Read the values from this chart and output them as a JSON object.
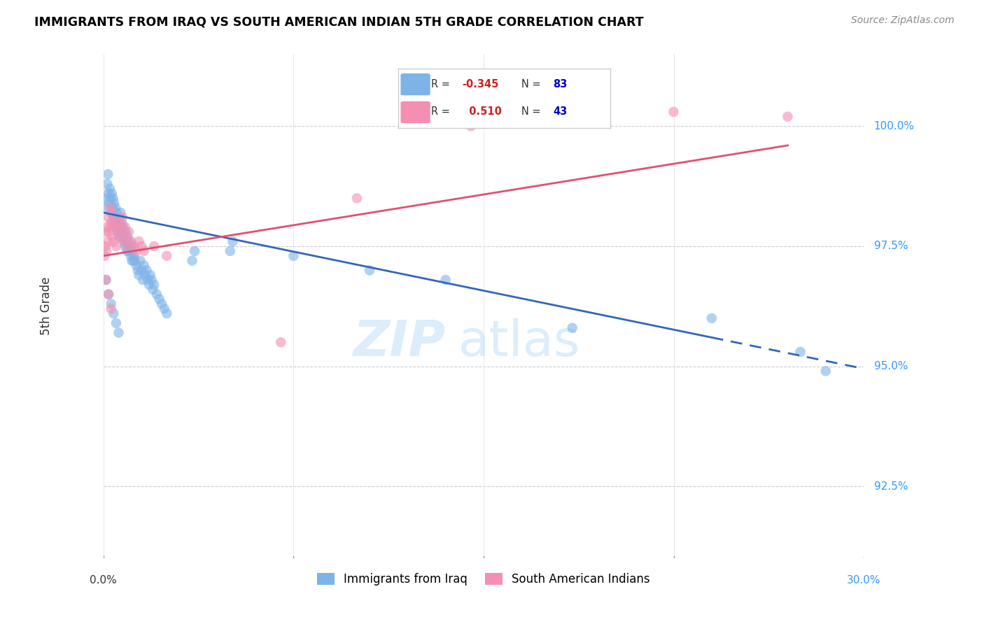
{
  "title": "IMMIGRANTS FROM IRAQ VS SOUTH AMERICAN INDIAN 5TH GRADE CORRELATION CHART",
  "source": "Source: ZipAtlas.com",
  "ylabel": "5th Grade",
  "xmin": 0.0,
  "xmax": 30.0,
  "ymin": 91.0,
  "ymax": 101.5,
  "blue_R": -0.345,
  "blue_N": 83,
  "pink_R": 0.51,
  "pink_N": 43,
  "blue_color": "#7EB3E8",
  "pink_color": "#F48FB1",
  "blue_line_color": "#3366BB",
  "pink_line_color": "#E05070",
  "legend_label_blue": "Immigrants from Iraq",
  "legend_label_pink": "South American Indians",
  "watermark_zip": "ZIP",
  "watermark_atlas": "atlas",
  "blue_line_x0": 0.0,
  "blue_line_y0": 98.2,
  "blue_line_x1": 30.0,
  "blue_line_y1": 94.95,
  "blue_solid_end": 24.0,
  "pink_line_x0": 0.0,
  "pink_line_y0": 97.3,
  "pink_line_x1": 27.0,
  "pink_line_y1": 99.6,
  "ytick_vals": [
    92.5,
    95.0,
    97.5,
    100.0
  ],
  "ytick_labels": [
    "92.5%",
    "95.0%",
    "97.5%",
    "100.0%"
  ],
  "blue_scatter_x": [
    0.08,
    0.12,
    0.15,
    0.18,
    0.2,
    0.22,
    0.25,
    0.28,
    0.3,
    0.33,
    0.35,
    0.38,
    0.4,
    0.42,
    0.45,
    0.48,
    0.5,
    0.52,
    0.55,
    0.58,
    0.6,
    0.62,
    0.65,
    0.68,
    0.7,
    0.72,
    0.75,
    0.78,
    0.8,
    0.82,
    0.85,
    0.88,
    0.9,
    0.92,
    0.95,
    0.98,
    1.0,
    1.02,
    1.05,
    1.08,
    1.1,
    1.12,
    1.15,
    1.18,
    1.2,
    1.25,
    1.3,
    1.35,
    1.4,
    1.45,
    1.5,
    1.55,
    1.6,
    1.65,
    1.7,
    1.75,
    1.8,
    1.85,
    1.9,
    1.95,
    2.0,
    2.1,
    2.2,
    2.3,
    2.4,
    2.5,
    3.5,
    3.6,
    5.0,
    5.1,
    7.5,
    10.5,
    13.5,
    18.5,
    24.0,
    27.5,
    28.5,
    0.1,
    0.2,
    0.3,
    0.4,
    0.5,
    0.6
  ],
  "blue_scatter_y": [
    98.5,
    98.3,
    98.8,
    99.0,
    98.6,
    98.4,
    98.7,
    98.5,
    98.2,
    98.6,
    98.3,
    98.5,
    98.1,
    98.4,
    98.0,
    98.3,
    97.9,
    98.2,
    98.0,
    97.8,
    98.1,
    97.7,
    97.9,
    98.2,
    97.8,
    98.0,
    97.7,
    97.9,
    97.8,
    97.6,
    97.5,
    97.8,
    97.6,
    97.4,
    97.7,
    97.5,
    97.4,
    97.6,
    97.5,
    97.3,
    97.5,
    97.2,
    97.4,
    97.2,
    97.3,
    97.2,
    97.1,
    97.0,
    96.9,
    97.2,
    97.0,
    96.8,
    97.1,
    96.9,
    97.0,
    96.8,
    96.7,
    96.9,
    96.8,
    96.6,
    96.7,
    96.5,
    96.4,
    96.3,
    96.2,
    96.1,
    97.2,
    97.4,
    97.4,
    97.6,
    97.3,
    97.0,
    96.8,
    95.8,
    96.0,
    95.3,
    94.9,
    96.8,
    96.5,
    96.3,
    96.1,
    95.9,
    95.7
  ],
  "pink_scatter_x": [
    0.05,
    0.08,
    0.1,
    0.12,
    0.15,
    0.18,
    0.2,
    0.22,
    0.25,
    0.28,
    0.3,
    0.33,
    0.35,
    0.38,
    0.4,
    0.45,
    0.5,
    0.55,
    0.6,
    0.65,
    0.7,
    0.75,
    0.8,
    0.85,
    0.9,
    0.95,
    1.0,
    1.1,
    1.2,
    1.3,
    1.4,
    1.5,
    1.6,
    2.0,
    2.5,
    7.0,
    10.0,
    14.5,
    22.5,
    27.0,
    0.1,
    0.2,
    0.3
  ],
  "pink_scatter_y": [
    97.3,
    97.5,
    97.8,
    97.4,
    97.9,
    97.6,
    98.1,
    97.8,
    98.3,
    97.9,
    98.0,
    98.2,
    97.7,
    98.0,
    97.6,
    97.9,
    97.5,
    97.8,
    98.0,
    97.7,
    97.9,
    98.1,
    97.6,
    97.9,
    97.7,
    97.5,
    97.8,
    97.6,
    97.5,
    97.4,
    97.6,
    97.5,
    97.4,
    97.5,
    97.3,
    95.5,
    98.5,
    100.0,
    100.3,
    100.2,
    96.8,
    96.5,
    96.2
  ]
}
